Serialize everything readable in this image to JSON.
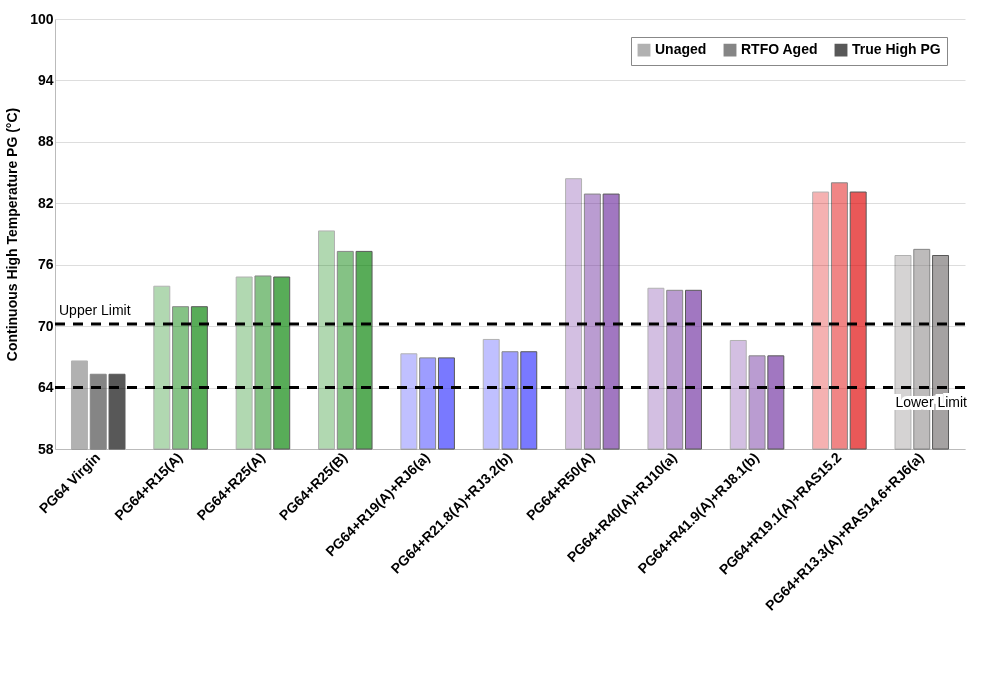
{
  "chart_data": {
    "type": "bar",
    "ylabel": "Continuous High Temperature PG (°C)",
    "categories": [
      "PG64 Virgin",
      "PG64+R15(A)",
      "PG64+R25(A)",
      "PG64+R25(B)",
      "PG64+R19(A)+RJ6(a)",
      "PG64+R21.8(A)+RJ3.2(b)",
      "PG64+R50(A)",
      "PG64+R40(A)+RJ10(a)",
      "PG64+R41.9(A)+RJ8.1(b)",
      "PG64+R19.1(A)+RAS15.2",
      "PG64+R13.3(A)+RAS14.6+RJ6(a)"
    ],
    "series": [
      {
        "name": "Unaged",
        "color": "#000000",
        "colors": [
          "#000000",
          "#008000",
          "#008000",
          "#008000",
          "#3333ff",
          "#3333ff",
          "#7030a0",
          "#7030a0",
          "#7030a0",
          "#e00000",
          "#767171"
        ],
        "values": [
          66.6,
          73.9,
          74.8,
          79.3,
          67.3,
          68.7,
          84.4,
          73.7,
          68.6,
          83.1,
          76.9
        ]
      },
      {
        "name": "RTFO Aged",
        "color": "#000000",
        "colors": [
          "#000000",
          "#008000",
          "#008000",
          "#008000",
          "#3333ff",
          "#3333ff",
          "#7030a0",
          "#7030a0",
          "#7030a0",
          "#e00000",
          "#767171"
        ],
        "values": [
          65.3,
          71.9,
          74.9,
          77.3,
          66.9,
          67.5,
          82.9,
          73.5,
          67.1,
          84.0,
          77.5
        ]
      },
      {
        "name": "True High PG",
        "color": "#000000",
        "colors": [
          "#000000",
          "#008000",
          "#008000",
          "#008000",
          "#3333ff",
          "#3333ff",
          "#7030a0",
          "#7030a0",
          "#7030a0",
          "#e00000",
          "#767171"
        ],
        "values": [
          65.3,
          71.9,
          74.8,
          77.3,
          66.9,
          67.5,
          82.9,
          73.5,
          67.1,
          83.1,
          76.9
        ]
      }
    ],
    "ylim": [
      58,
      100
    ],
    "yticks": [
      58,
      64,
      70,
      76,
      82,
      88,
      94,
      100
    ],
    "grid": "y",
    "legend": "top right",
    "ref_lines": [
      {
        "axis": "y",
        "value": 70.2,
        "label": "Upper Limit",
        "color": "#000000",
        "line_style": "dashed"
      },
      {
        "axis": "y",
        "value": 64,
        "label": "Lower Limit",
        "color": "#000000",
        "line_style": "dashed"
      }
    ]
  }
}
